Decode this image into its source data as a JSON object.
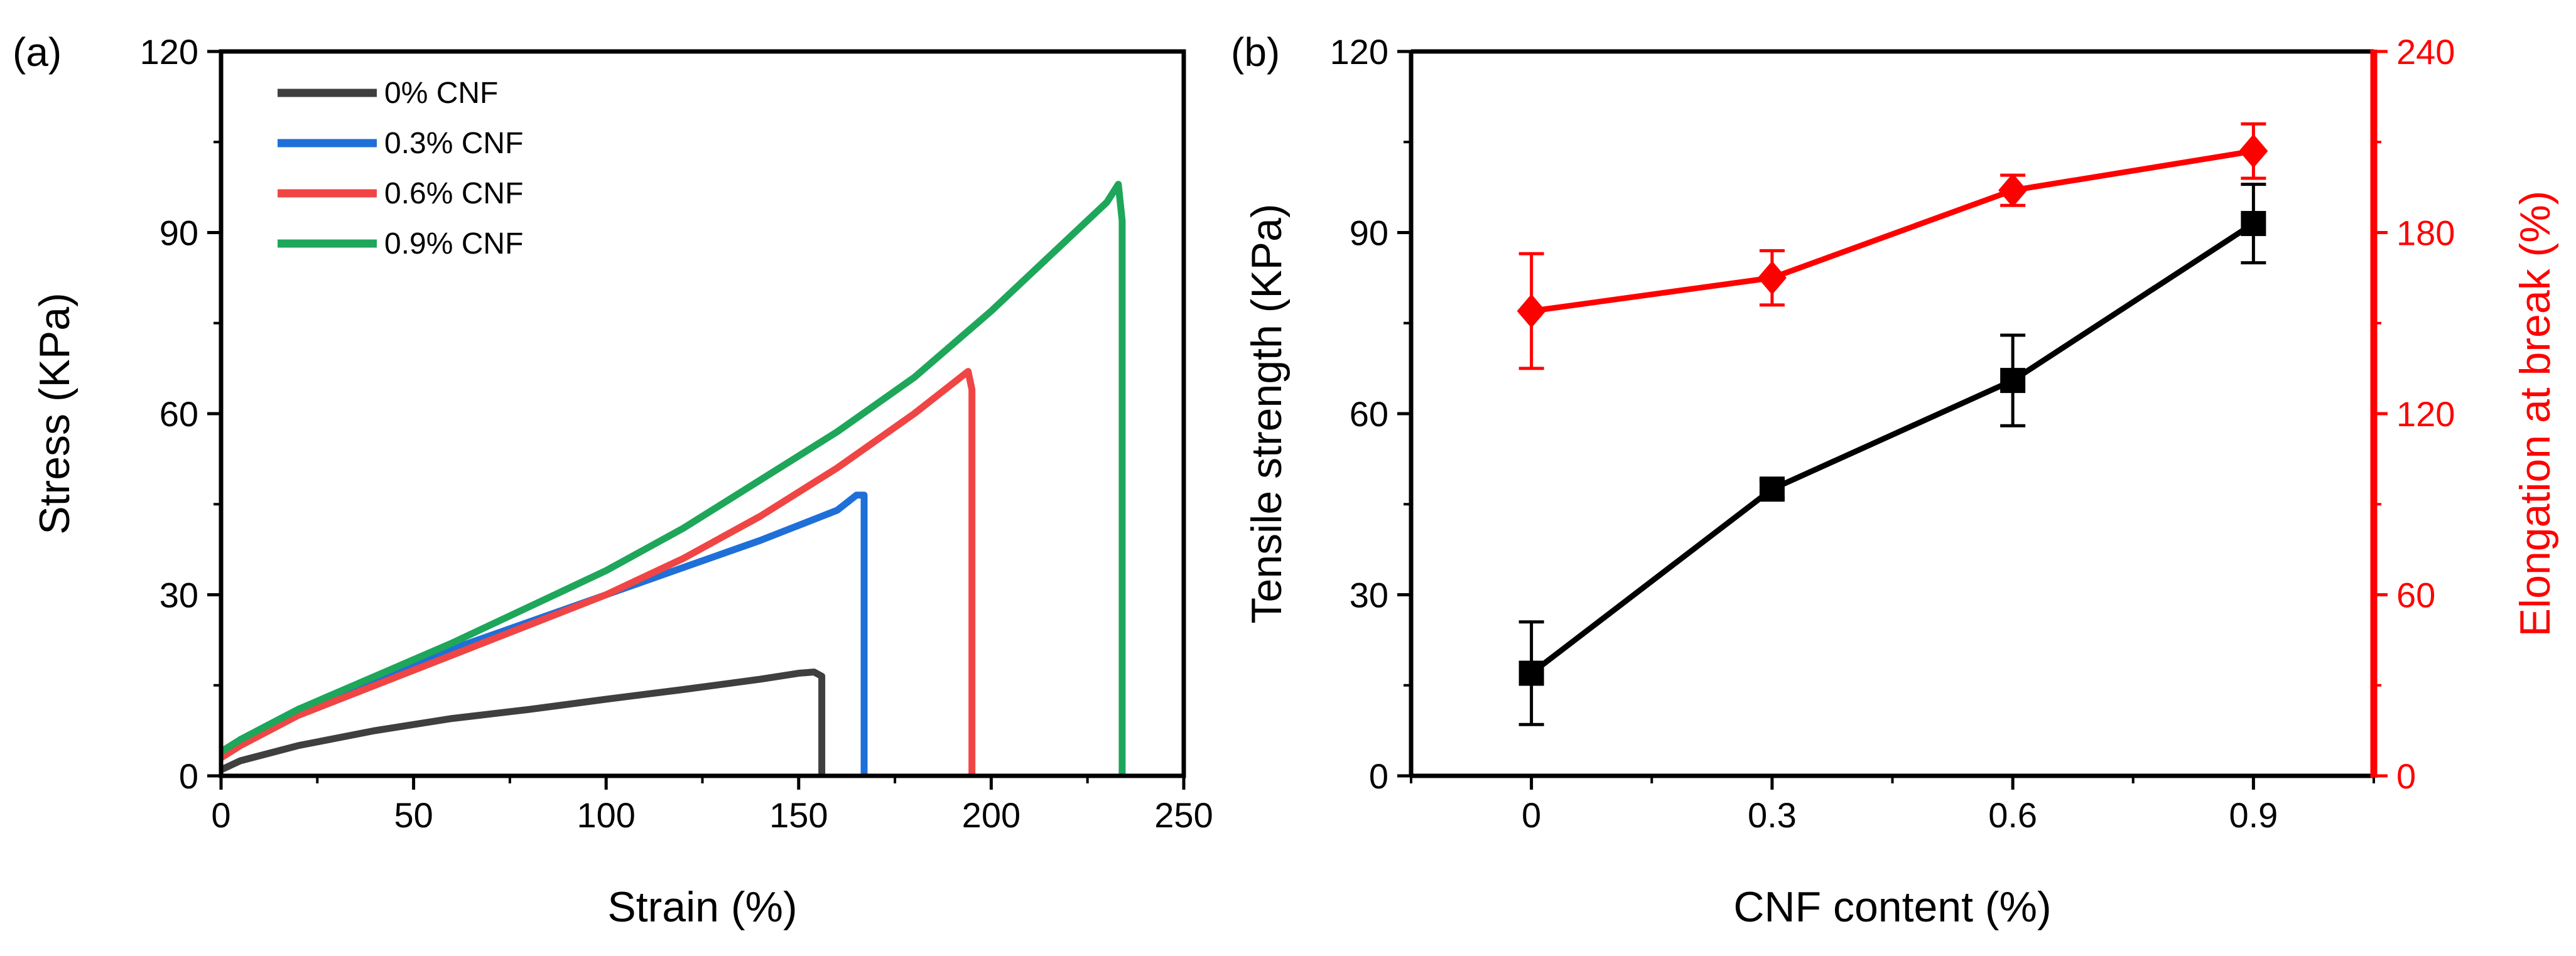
{
  "panels": {
    "a": {
      "label": "(a)"
    },
    "b": {
      "label": "(b)"
    }
  },
  "chart_data": [
    {
      "id": "a",
      "type": "line",
      "xlabel": "Strain (%)",
      "ylabel": "Stress (KPa)",
      "xlim": [
        0,
        250
      ],
      "ylim": [
        0,
        120
      ],
      "xticks": [
        0,
        50,
        100,
        150,
        200,
        250
      ],
      "yticks": [
        0,
        30,
        60,
        90,
        120
      ],
      "xticklabels": [
        "0",
        "50",
        "100",
        "150",
        "200",
        "250"
      ],
      "yticklabels": [
        "0",
        "30",
        "60",
        "90",
        "120"
      ],
      "legend_position": "top-left",
      "series": [
        {
          "name": "0% CNF",
          "color": "#3f3f3f",
          "x": [
            0,
            5,
            20,
            40,
            60,
            80,
            100,
            120,
            140,
            150,
            154,
            156,
            156
          ],
          "y": [
            1,
            2.5,
            5,
            7.5,
            9.5,
            11,
            12.7,
            14.3,
            16,
            17,
            17.2,
            16.5,
            0
          ]
        },
        {
          "name": "0.3% CNF",
          "color": "#1f6fd8",
          "x": [
            0,
            5,
            20,
            40,
            60,
            80,
            100,
            120,
            140,
            160,
            165,
            167,
            167
          ],
          "y": [
            3,
            6,
            11,
            16,
            21,
            25.5,
            30,
            34.5,
            39,
            44,
            46.5,
            46.5,
            0
          ]
        },
        {
          "name": "0.6% CNF",
          "color": "#f04545",
          "x": [
            0,
            5,
            20,
            40,
            60,
            80,
            100,
            120,
            140,
            160,
            180,
            190,
            194,
            195,
            195
          ],
          "y": [
            3,
            5,
            10,
            15,
            20,
            25,
            30,
            36,
            43,
            51,
            60,
            65,
            67,
            64,
            0
          ]
        },
        {
          "name": "0.9% CNF",
          "color": "#1ea65a",
          "x": [
            0,
            5,
            20,
            40,
            60,
            80,
            100,
            120,
            140,
            160,
            180,
            200,
            220,
            230,
            233,
            234,
            234
          ],
          "y": [
            4,
            6,
            11,
            16.5,
            22,
            28,
            34,
            41,
            49,
            57,
            66,
            77,
            89,
            95,
            98,
            92,
            0
          ]
        }
      ]
    },
    {
      "id": "b",
      "type": "line",
      "xlabel": "CNF content (%)",
      "ylabel": "Tensile strength (KPa)",
      "y2label": "Elongation at break (%)",
      "categories": [
        "0",
        "0.3",
        "0.6",
        "0.9"
      ],
      "x": [
        0,
        0.3,
        0.6,
        0.9
      ],
      "xlim": [
        -0.15,
        1.05
      ],
      "ylim": [
        0,
        120
      ],
      "y2lim": [
        0,
        240
      ],
      "yticklabels": [
        "0",
        "30",
        "60",
        "90",
        "120"
      ],
      "y2ticklabels": [
        "0",
        "60",
        "120",
        "180",
        "240"
      ],
      "series": [
        {
          "name": "Tensile strength",
          "axis": "left",
          "marker": "square",
          "color": "#000000",
          "values": [
            17,
            47.5,
            65.5,
            91.5
          ],
          "errors": [
            8.5,
            1.5,
            7.5,
            6.5
          ]
        },
        {
          "name": "Elongation at break",
          "axis": "right",
          "marker": "diamond",
          "color": "#ff0000",
          "values": [
            154,
            165,
            194,
            207
          ],
          "errors": [
            19,
            9,
            5,
            9
          ]
        }
      ]
    }
  ]
}
